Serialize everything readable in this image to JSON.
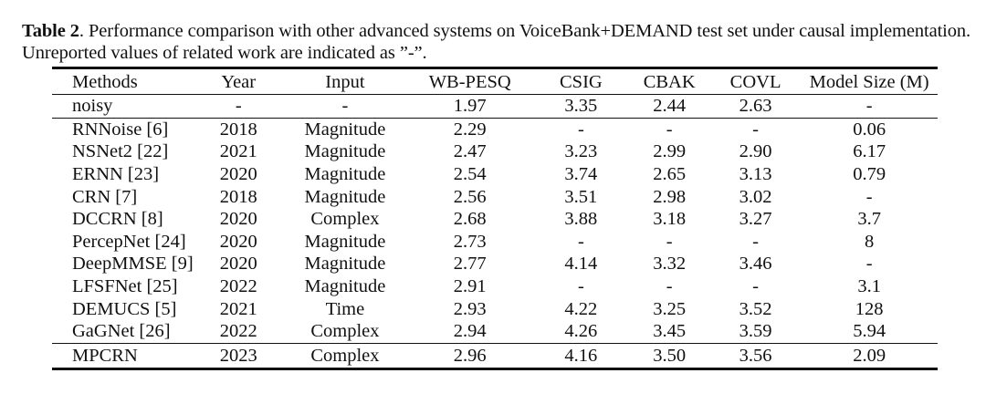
{
  "caption": {
    "label": "Table 2",
    "text": ". Performance comparison with other advanced systems on VoiceBank+DEMAND test set under causal implementation.",
    "text2": "Unreported values of related work are indicated as ”-”."
  },
  "table": {
    "headers": [
      "Methods",
      "Year",
      "Input",
      "WB-PESQ",
      "CSIG",
      "CBAK",
      "COVL",
      "Model Size (M)"
    ],
    "noisy": [
      "noisy",
      "-",
      "-",
      "1.97",
      "3.35",
      "2.44",
      "2.63",
      "-"
    ],
    "rows": [
      [
        "RNNoise [6]",
        "2018",
        "Magnitude",
        "2.29",
        "-",
        "-",
        "-",
        "0.06"
      ],
      [
        "NSNet2 [22]",
        "2021",
        "Magnitude",
        "2.47",
        "3.23",
        "2.99",
        "2.90",
        "6.17"
      ],
      [
        "ERNN [23]",
        "2020",
        "Magnitude",
        "2.54",
        "3.74",
        "2.65",
        "3.13",
        "0.79"
      ],
      [
        "CRN [7]",
        "2018",
        "Magnitude",
        "2.56",
        "3.51",
        "2.98",
        "3.02",
        "-"
      ],
      [
        "DCCRN [8]",
        "2020",
        "Complex",
        "2.68",
        "3.88",
        "3.18",
        "3.27",
        "3.7"
      ],
      [
        "PercepNet [24]",
        "2020",
        "Magnitude",
        "2.73",
        "-",
        "-",
        "-",
        "8"
      ],
      [
        "DeepMMSE [9]",
        "2020",
        "Magnitude",
        "2.77",
        "4.14",
        "3.32",
        "3.46",
        "-"
      ],
      [
        "LFSFNet [25]",
        "2022",
        "Magnitude",
        "2.91",
        "-",
        "-",
        "-",
        "3.1"
      ],
      [
        "DEMUCS [5]",
        "2021",
        "Time",
        "2.93",
        "4.22",
        "3.25",
        "3.52",
        "128"
      ],
      [
        "GaGNet [26]",
        "2022",
        "Complex",
        "2.94",
        "4.26",
        "3.45",
        "3.59",
        "5.94"
      ]
    ],
    "ours": [
      "MPCRN",
      "2023",
      "Complex",
      "2.96",
      "4.16",
      "3.50",
      "3.56",
      "2.09"
    ],
    "bold_cells": [
      [
        9,
        4
      ],
      [
        9,
        6
      ],
      [
        10,
        3
      ],
      [
        10,
        5
      ]
    ]
  }
}
